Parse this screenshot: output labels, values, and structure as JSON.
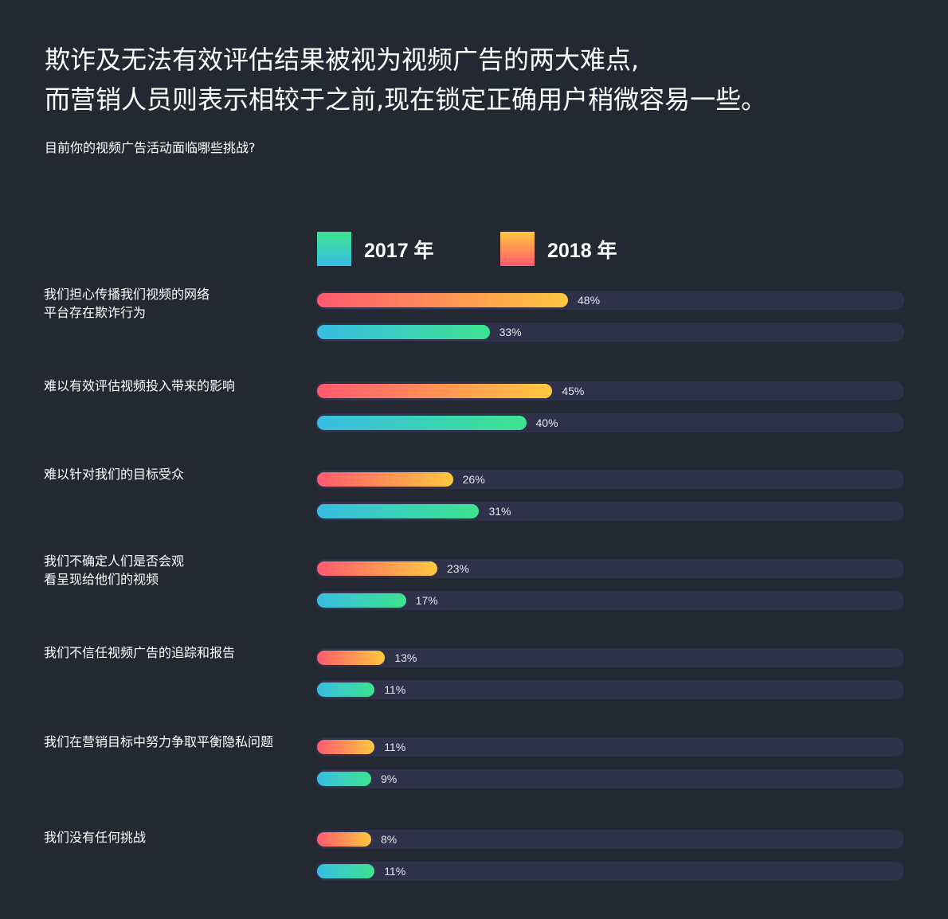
{
  "title_line1": "欺诈及无法有效评估结果被视为视频广告的两大难点,",
  "title_line2": "而营销人员则表示相较于之前,现在锁定正确用户稍微容易一些。",
  "chart_data": {
    "type": "bar",
    "orientation": "horizontal",
    "title": "目前你的视频广告活动面临哪些挑战?",
    "legend_placement": "top",
    "categories": [
      "我们担心传播我们视频的网络平台存在欺诈行为",
      "难以有效评估视频投入带来的影响",
      "难以针对我们的目标受众",
      "我们不确定人们是否会观看呈现给他们的视频",
      "我们不信任视频广告的追踪和报告",
      "我们在营销目标中努力争取平衡隐私问题",
      "我们没有任何挑战"
    ],
    "category_lines": [
      [
        "我们担心传播我们视频的网络",
        "平台存在欺诈行为"
      ],
      [
        "难以有效评估视频投入带来的影响"
      ],
      [
        "难以针对我们的目标受众"
      ],
      [
        "我们不确定人们是否会观",
        "看呈现给他们的视频"
      ],
      [
        "我们不信任视频广告的追踪和报告"
      ],
      [
        "我们在营销目标中努力争取平衡隐私问题"
      ],
      [
        "我们没有任何挑战"
      ]
    ],
    "series": [
      {
        "name": "2018 年",
        "values": [
          48,
          45,
          26,
          23,
          13,
          11,
          8
        ],
        "colors": [
          "#ff5a6e",
          "#ffc83f"
        ]
      },
      {
        "name": "2017 年",
        "values": [
          33,
          40,
          31,
          17,
          11,
          9,
          11
        ],
        "colors": [
          "#38bde4",
          "#3de38f"
        ]
      }
    ],
    "value_suffix": "%"
  },
  "colors": {
    "background": "#232833",
    "track": "#2e3149"
  }
}
